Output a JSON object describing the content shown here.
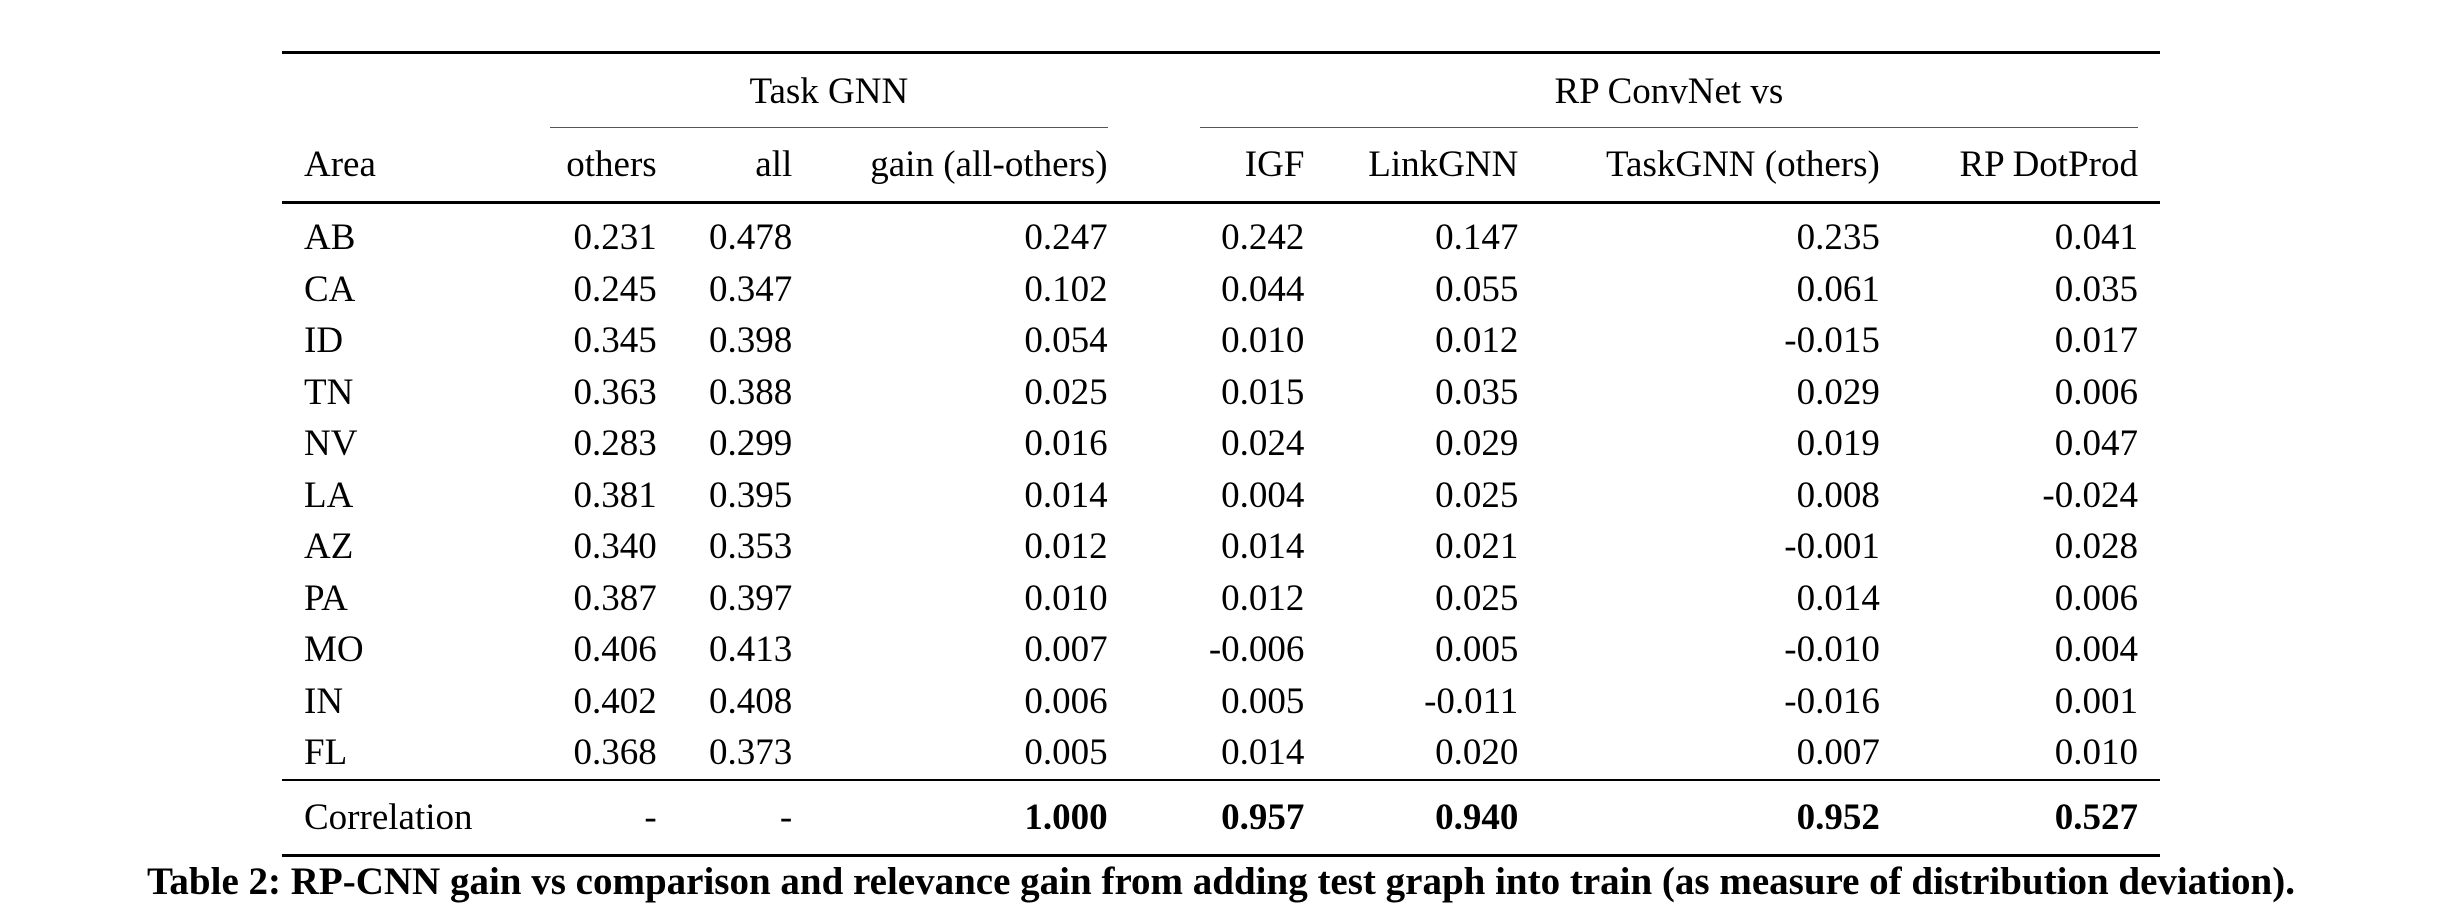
{
  "table": {
    "group_headers": {
      "task_gnn": "Task GNN",
      "rp_convnet": "RP ConvNet vs"
    },
    "columns": {
      "area": "Area",
      "others": "others",
      "all": "all",
      "gain": "gain (all-others)",
      "igf": "IGF",
      "linkgnn": "LinkGNN",
      "taskgnn_others": "TaskGNN (others)",
      "rp_dotprod": "RP DotProd"
    },
    "rows": [
      {
        "area": "AB",
        "others": "0.231",
        "all": "0.478",
        "gain": "0.247",
        "igf": "0.242",
        "linkgnn": "0.147",
        "taskgnn_others": "0.235",
        "rp_dotprod": "0.041"
      },
      {
        "area": "CA",
        "others": "0.245",
        "all": "0.347",
        "gain": "0.102",
        "igf": "0.044",
        "linkgnn": "0.055",
        "taskgnn_others": "0.061",
        "rp_dotprod": "0.035"
      },
      {
        "area": "ID",
        "others": "0.345",
        "all": "0.398",
        "gain": "0.054",
        "igf": "0.010",
        "linkgnn": "0.012",
        "taskgnn_others": "-0.015",
        "rp_dotprod": "0.017"
      },
      {
        "area": "TN",
        "others": "0.363",
        "all": "0.388",
        "gain": "0.025",
        "igf": "0.015",
        "linkgnn": "0.035",
        "taskgnn_others": "0.029",
        "rp_dotprod": "0.006"
      },
      {
        "area": "NV",
        "others": "0.283",
        "all": "0.299",
        "gain": "0.016",
        "igf": "0.024",
        "linkgnn": "0.029",
        "taskgnn_others": "0.019",
        "rp_dotprod": "0.047"
      },
      {
        "area": "LA",
        "others": "0.381",
        "all": "0.395",
        "gain": "0.014",
        "igf": "0.004",
        "linkgnn": "0.025",
        "taskgnn_others": "0.008",
        "rp_dotprod": "-0.024"
      },
      {
        "area": "AZ",
        "others": "0.340",
        "all": "0.353",
        "gain": "0.012",
        "igf": "0.014",
        "linkgnn": "0.021",
        "taskgnn_others": "-0.001",
        "rp_dotprod": "0.028"
      },
      {
        "area": "PA",
        "others": "0.387",
        "all": "0.397",
        "gain": "0.010",
        "igf": "0.012",
        "linkgnn": "0.025",
        "taskgnn_others": "0.014",
        "rp_dotprod": "0.006"
      },
      {
        "area": "MO",
        "others": "0.406",
        "all": "0.413",
        "gain": "0.007",
        "igf": "-0.006",
        "linkgnn": "0.005",
        "taskgnn_others": "-0.010",
        "rp_dotprod": "0.004"
      },
      {
        "area": "IN",
        "others": "0.402",
        "all": "0.408",
        "gain": "0.006",
        "igf": "0.005",
        "linkgnn": "-0.011",
        "taskgnn_others": "-0.016",
        "rp_dotprod": "0.001"
      },
      {
        "area": "FL",
        "others": "0.368",
        "all": "0.373",
        "gain": "0.005",
        "igf": "0.014",
        "linkgnn": "0.020",
        "taskgnn_others": "0.007",
        "rp_dotprod": "0.010"
      }
    ],
    "correlation": {
      "area": "Correlation",
      "others": "-",
      "all": "-",
      "gain": "1.000",
      "igf": "0.957",
      "linkgnn": "0.940",
      "taskgnn_others": "0.952",
      "rp_dotprod": "0.527"
    }
  },
  "caption": "Table 2: RP-CNN gain vs comparison and relevance gain from adding test graph into train (as measure of distribution deviation)."
}
